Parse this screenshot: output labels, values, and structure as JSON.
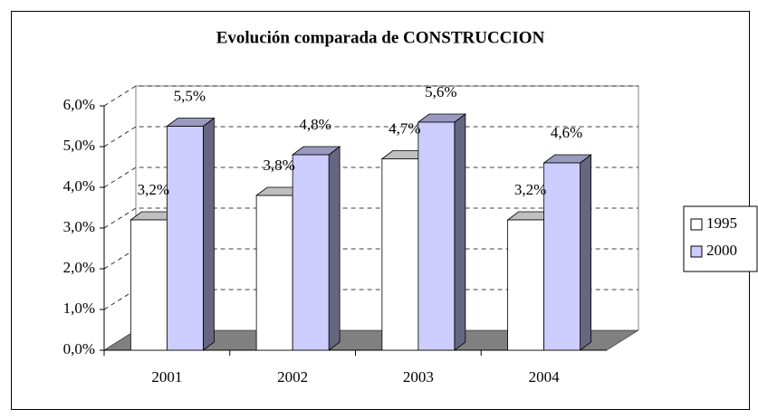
{
  "chart_data": {
    "type": "bar3d",
    "title": "Evolución comparada de CONSTRUCCION",
    "categories": [
      "2001",
      "2002",
      "2003",
      "2004"
    ],
    "series": [
      {
        "name": "1995",
        "color": "#ffffff",
        "values": [
          3.2,
          3.8,
          4.7,
          3.2
        ],
        "value_labels": [
          "3,2%",
          "3,8%",
          "4,7%",
          "3,2%"
        ]
      },
      {
        "name": "2000",
        "color": "#ccccff",
        "values": [
          5.5,
          4.8,
          5.6,
          4.6
        ],
        "value_labels": [
          "5,5%",
          "4,8%",
          "5,6%",
          "4,6%"
        ]
      }
    ],
    "ylim": [
      0,
      6
    ],
    "yticks": [
      {
        "value": 0,
        "label": "0,0%"
      },
      {
        "value": 1,
        "label": "1,0%"
      },
      {
        "value": 2,
        "label": "2,0%"
      },
      {
        "value": 3,
        "label": "3,0%"
      },
      {
        "value": 4,
        "label": "4,0%"
      },
      {
        "value": 5,
        "label": "5,0%"
      },
      {
        "value": 6,
        "label": "6,0%"
      }
    ],
    "grid": true,
    "legend": "right",
    "floor_color": "#808080"
  }
}
